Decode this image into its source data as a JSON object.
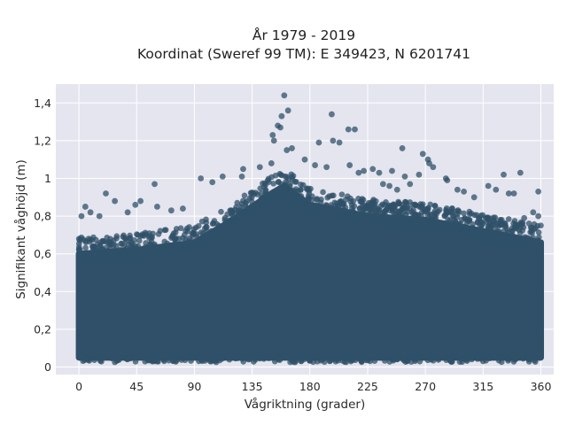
{
  "chart_data": {
    "type": "scatter",
    "title": "År 1979 - 2019",
    "subtitle": "Koordinat (Sweref 99 TM): E 349423, N 6201741",
    "xlabel": "Vågriktning (grader)",
    "ylabel": "Signifikant våghöjd (m)",
    "xlim": [
      -18,
      370
    ],
    "ylim": [
      -0.04,
      1.5
    ],
    "xticks": [
      0,
      45,
      90,
      135,
      180,
      225,
      270,
      315,
      360
    ],
    "xtick_labels": [
      "0",
      "45",
      "90",
      "135",
      "180",
      "225",
      "270",
      "315",
      "360"
    ],
    "yticks": [
      0,
      0.2,
      0.4,
      0.6,
      0.8,
      1.0,
      1.2,
      1.4
    ],
    "ytick_labels": [
      "0",
      "0,2",
      "0,4",
      "0,6",
      "0,8",
      "1",
      "1,2",
      "1,4"
    ],
    "grid": true,
    "marker_color": "#2f5068",
    "background_color": "#e5e5ef",
    "bulk_region": {
      "x_range": [
        0,
        360
      ],
      "upper_envelope": [
        [
          0,
          0.6
        ],
        [
          45,
          0.62
        ],
        [
          90,
          0.66
        ],
        [
          120,
          0.78
        ],
        [
          150,
          0.92
        ],
        [
          160,
          0.96
        ],
        [
          180,
          0.86
        ],
        [
          225,
          0.8
        ],
        [
          270,
          0.78
        ],
        [
          315,
          0.72
        ],
        [
          360,
          0.66
        ]
      ],
      "lower_bound": 0.05,
      "note_min": 0.02
    },
    "outliers": [
      [
        160,
        1.44
      ],
      [
        163,
        1.36
      ],
      [
        158,
        1.33
      ],
      [
        155,
        1.28
      ],
      [
        157,
        1.27
      ],
      [
        151,
        1.23
      ],
      [
        152,
        1.2
      ],
      [
        197,
        1.34
      ],
      [
        210,
        1.26
      ],
      [
        215,
        1.26
      ],
      [
        187,
        1.19
      ],
      [
        198,
        1.2
      ],
      [
        203,
        1.19
      ],
      [
        166,
        1.16
      ],
      [
        162,
        1.15
      ],
      [
        252,
        1.16
      ],
      [
        268,
        1.13
      ],
      [
        272,
        1.1
      ],
      [
        273,
        1.08
      ],
      [
        276,
        1.06
      ],
      [
        286,
        1.0
      ],
      [
        287,
        0.99
      ],
      [
        265,
        1.02
      ],
      [
        254,
        1.01
      ],
      [
        244,
        1.04
      ],
      [
        234,
        1.03
      ],
      [
        229,
        1.05
      ],
      [
        222,
        1.04
      ],
      [
        218,
        1.03
      ],
      [
        211,
        1.07
      ],
      [
        193,
        1.06
      ],
      [
        184,
        1.07
      ],
      [
        150,
        1.08
      ],
      [
        141,
        1.06
      ],
      [
        128,
        1.05
      ],
      [
        127,
        1.01
      ],
      [
        112,
        1.01
      ],
      [
        104,
        0.98
      ],
      [
        95,
        1.0
      ],
      [
        331,
        1.02
      ],
      [
        344,
        1.03
      ],
      [
        319,
        0.96
      ],
      [
        325,
        0.94
      ],
      [
        335,
        0.92
      ],
      [
        339,
        0.92
      ],
      [
        358,
        0.93
      ],
      [
        59,
        0.97
      ],
      [
        21,
        0.92
      ],
      [
        28,
        0.88
      ],
      [
        38,
        0.82
      ],
      [
        44,
        0.86
      ],
      [
        48,
        0.88
      ],
      [
        61,
        0.85
      ],
      [
        72,
        0.83
      ],
      [
        81,
        0.84
      ],
      [
        5,
        0.85
      ],
      [
        9,
        0.82
      ],
      [
        2,
        0.8
      ],
      [
        16,
        0.8
      ],
      [
        354,
        0.82
      ],
      [
        358,
        0.8
      ],
      [
        347,
        0.79
      ],
      [
        300,
        0.93
      ],
      [
        295,
        0.94
      ],
      [
        308,
        0.9
      ],
      [
        242,
        0.96
      ],
      [
        248,
        0.94
      ],
      [
        258,
        0.97
      ],
      [
        237,
        0.97
      ],
      [
        176,
        1.1
      ]
    ]
  }
}
